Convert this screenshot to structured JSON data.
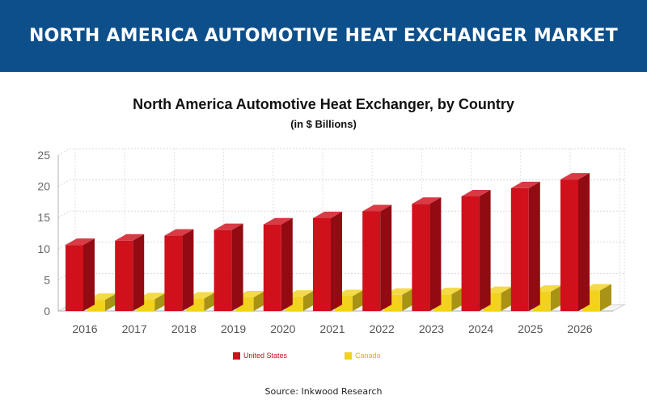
{
  "banner": {
    "title": "NORTH AMERICA AUTOMOTIVE HEAT EXCHANGER MARKET"
  },
  "source": "Source: Inkwood Research",
  "chart_data": {
    "type": "bar",
    "title": "North America Automotive Heat Exchanger, by Country",
    "subtitle": "(in $ Billions)",
    "categories": [
      "2016",
      "2017",
      "2018",
      "2019",
      "2020",
      "2021",
      "2022",
      "2023",
      "2024",
      "2025",
      "2026"
    ],
    "series": [
      {
        "name": "United States",
        "color": "#d0101b",
        "values": [
          10.6,
          11.3,
          12.1,
          13.0,
          13.9,
          14.9,
          16.0,
          17.2,
          18.4,
          19.7,
          21.1
        ]
      },
      {
        "name": "Canada",
        "color": "#f2d21e",
        "values": [
          1.8,
          1.9,
          2.0,
          2.2,
          2.3,
          2.4,
          2.6,
          2.7,
          2.9,
          3.1,
          3.3
        ]
      }
    ],
    "ylim": [
      0,
      25
    ],
    "yticks": [
      0,
      5,
      10,
      15,
      20,
      25
    ],
    "grid": true,
    "legend": "bottom",
    "style": "3d-clustered"
  }
}
